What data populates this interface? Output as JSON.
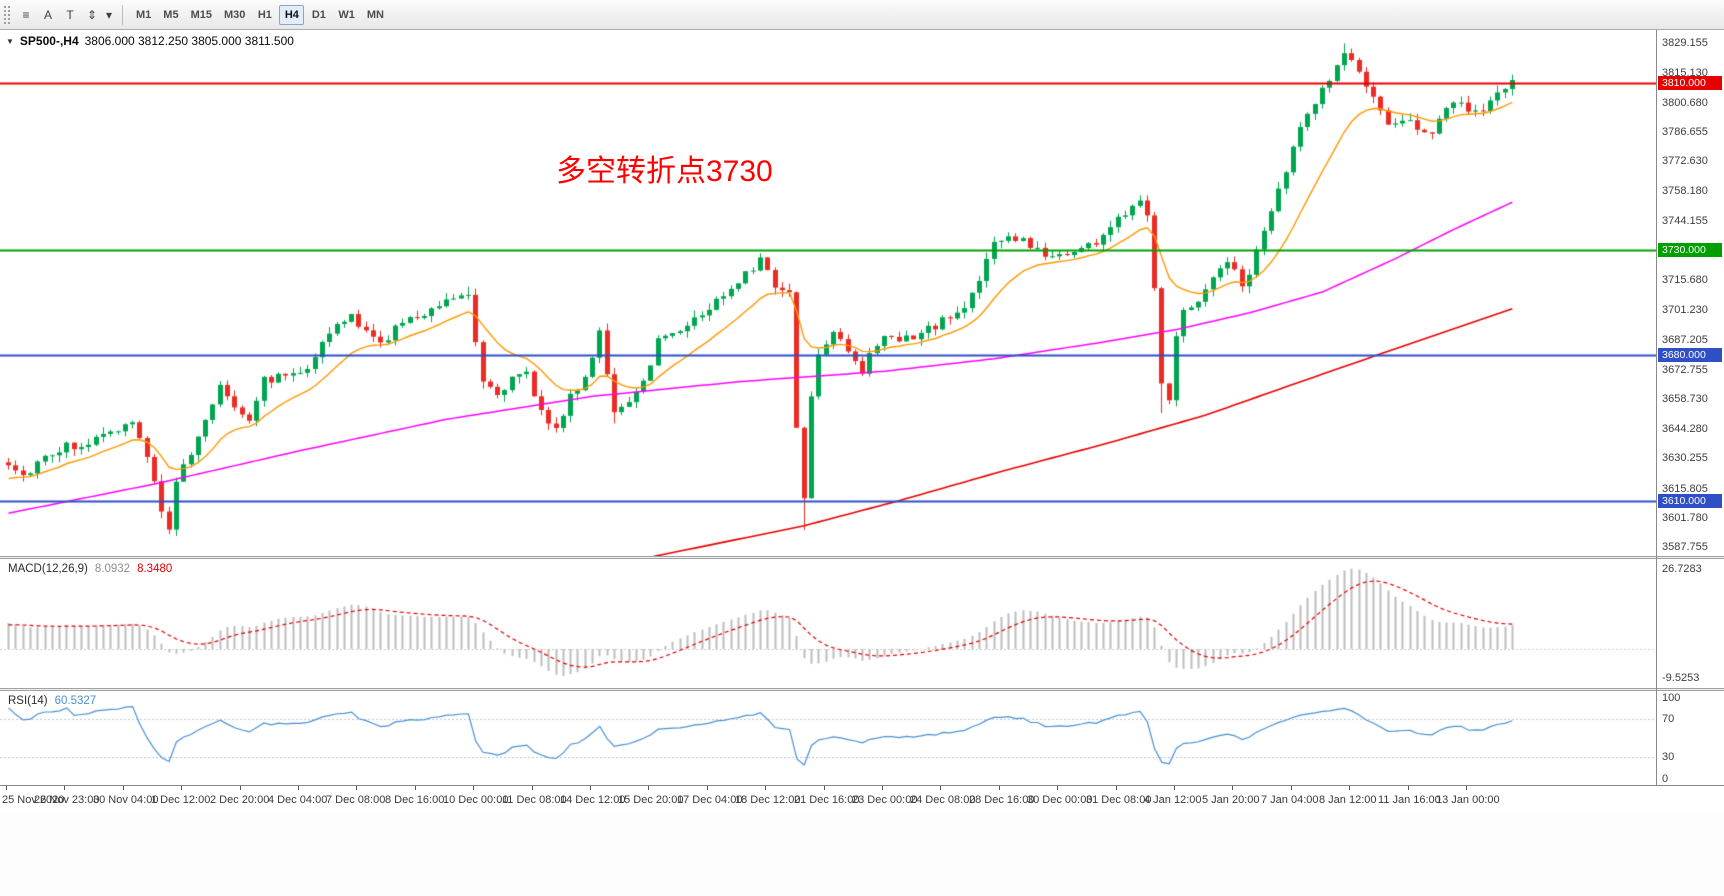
{
  "toolbar": {
    "tools": [
      {
        "name": "toolbox",
        "glyph": "≡"
      },
      {
        "name": "cursor",
        "glyph": "A"
      },
      {
        "name": "text",
        "glyph": "T"
      },
      {
        "name": "crosshair",
        "glyph": "⇕"
      },
      {
        "name": "tools-dropdown",
        "glyph": "▾"
      }
    ],
    "timeframes": [
      {
        "label": "M1",
        "active": false
      },
      {
        "label": "M5",
        "active": false
      },
      {
        "label": "M15",
        "active": false
      },
      {
        "label": "M30",
        "active": false
      },
      {
        "label": "H1",
        "active": false
      },
      {
        "label": "H4",
        "active": true
      },
      {
        "label": "D1",
        "active": false
      },
      {
        "label": "W1",
        "active": false
      },
      {
        "label": "MN",
        "active": false
      }
    ]
  },
  "chart_data": {
    "type": "candlestick",
    "symbol": "SP500-",
    "timeframe": "H4",
    "title_symbol": "SP500-,H4",
    "title_ohlc": "3806.000 3812.250 3805.000 3811.500",
    "one_click_glyph": "▼",
    "annotation": {
      "text": "多空转折点3730",
      "color": "#ff0000"
    },
    "bars": 207,
    "bar_step": 7.3,
    "label_bar_step": 8,
    "scale": {
      "pmax": 3835.5,
      "pmin": 3583.5
    },
    "colors": {
      "up": "#00a550",
      "down": "#ec2c24"
    },
    "series_anchors": [
      [
        0,
        3629
      ],
      [
        2,
        3622
      ],
      [
        5,
        3632
      ],
      [
        8,
        3636
      ],
      [
        11,
        3638
      ],
      [
        14,
        3642
      ],
      [
        17,
        3648
      ],
      [
        19,
        3630
      ],
      [
        21,
        3606
      ],
      [
        22,
        3598
      ],
      [
        23,
        3620
      ],
      [
        25,
        3632
      ],
      [
        27,
        3648
      ],
      [
        29,
        3666
      ],
      [
        31,
        3656
      ],
      [
        33,
        3650
      ],
      [
        35,
        3668
      ],
      [
        38,
        3670
      ],
      [
        41,
        3675
      ],
      [
        44,
        3690
      ],
      [
        47,
        3699
      ],
      [
        49,
        3690
      ],
      [
        51,
        3685
      ],
      [
        53,
        3693
      ],
      [
        56,
        3698
      ],
      [
        58,
        3703
      ],
      [
        61,
        3708
      ],
      [
        63,
        3710
      ],
      [
        64,
        3688
      ],
      [
        65,
        3668
      ],
      [
        67,
        3662
      ],
      [
        69,
        3668
      ],
      [
        71,
        3670
      ],
      [
        73,
        3653
      ],
      [
        75,
        3645
      ],
      [
        77,
        3659
      ],
      [
        79,
        3669
      ],
      [
        81,
        3692
      ],
      [
        82,
        3672
      ],
      [
        83,
        3652
      ],
      [
        85,
        3655
      ],
      [
        87,
        3667
      ],
      [
        89,
        3687
      ],
      [
        92,
        3693
      ],
      [
        95,
        3699
      ],
      [
        98,
        3709
      ],
      [
        101,
        3720
      ],
      [
        103,
        3725
      ],
      [
        105,
        3713
      ],
      [
        107,
        3710
      ],
      [
        108,
        3645
      ],
      [
        109,
        3612
      ],
      [
        110,
        3662
      ],
      [
        111,
        3680
      ],
      [
        113,
        3693
      ],
      [
        115,
        3683
      ],
      [
        117,
        3672
      ],
      [
        119,
        3685
      ],
      [
        121,
        3689
      ],
      [
        124,
        3687
      ],
      [
        126,
        3692
      ],
      [
        129,
        3698
      ],
      [
        131,
        3702
      ],
      [
        133,
        3717
      ],
      [
        135,
        3733
      ],
      [
        137,
        3736
      ],
      [
        139,
        3734
      ],
      [
        141,
        3730
      ],
      [
        143,
        3727
      ],
      [
        145,
        3729
      ],
      [
        147,
        3731
      ],
      [
        149,
        3734
      ],
      [
        151,
        3741
      ],
      [
        153,
        3748
      ],
      [
        155,
        3756
      ],
      [
        156,
        3748
      ],
      [
        157,
        3712
      ],
      [
        158,
        3668
      ],
      [
        159,
        3660
      ],
      [
        160,
        3690
      ],
      [
        161,
        3700
      ],
      [
        163,
        3707
      ],
      [
        165,
        3716
      ],
      [
        167,
        3726
      ],
      [
        169,
        3712
      ],
      [
        171,
        3729
      ],
      [
        173,
        3748
      ],
      [
        175,
        3768
      ],
      [
        177,
        3788
      ],
      [
        179,
        3802
      ],
      [
        181,
        3812
      ],
      [
        183,
        3824
      ],
      [
        184,
        3820
      ],
      [
        185,
        3816
      ],
      [
        187,
        3802
      ],
      [
        189,
        3788
      ],
      [
        191,
        3794
      ],
      [
        193,
        3790
      ],
      [
        195,
        3786
      ],
      [
        197,
        3797
      ],
      [
        199,
        3800
      ],
      [
        201,
        3795
      ],
      [
        203,
        3801
      ],
      [
        205,
        3808
      ],
      [
        206,
        3811.5
      ]
    ],
    "wick_overrides": [
      {
        "i": 22,
        "low": 3594
      },
      {
        "i": 63,
        "high": 3712.5
      },
      {
        "i": 83,
        "low": 3647
      },
      {
        "i": 109,
        "low": 3596
      },
      {
        "i": 158,
        "low": 3652
      },
      {
        "i": 183,
        "high": 3829.1
      }
    ],
    "moving_averages": {
      "fast_period": 13,
      "fast_color": "#ff9800",
      "mid_color": "#ff00ff",
      "mid_anchors": [
        [
          0,
          3604
        ],
        [
          20,
          3618
        ],
        [
          40,
          3634
        ],
        [
          60,
          3649
        ],
        [
          80,
          3660
        ],
        [
          100,
          3667
        ],
        [
          120,
          3672
        ],
        [
          135,
          3678
        ],
        [
          150,
          3686
        ],
        [
          160,
          3692
        ],
        [
          170,
          3700
        ],
        [
          180,
          3710
        ],
        [
          190,
          3726
        ],
        [
          198,
          3740
        ],
        [
          206,
          3753
        ]
      ],
      "slow_color": "#e60000",
      "slow_anchors": [
        [
          60,
          3556
        ],
        [
          88,
          3583
        ],
        [
          109,
          3598
        ],
        [
          122,
          3610
        ],
        [
          136,
          3624
        ],
        [
          150,
          3637
        ],
        [
          164,
          3651
        ],
        [
          177,
          3667
        ],
        [
          191,
          3684
        ],
        [
          206,
          3702
        ]
      ]
    },
    "horizontal_lines": [
      {
        "price": 3810,
        "color": "#e60000",
        "width": 2
      },
      {
        "price": 3730,
        "color": "#00a000",
        "width": 2
      },
      {
        "price": 3680,
        "color": "#2f4fc6",
        "width": 2
      },
      {
        "price": 3610,
        "color": "#2f4fc6",
        "width": 2
      }
    ],
    "price_axis_ticks": [
      "3829.155",
      "3815.130",
      "3800.680",
      "3786.655",
      "3772.630",
      "3758.180",
      "3744.155",
      "3715.680",
      "3701.230",
      "3687.205",
      "3672.755",
      "3658.730",
      "3644.280",
      "3630.255",
      "3615.805",
      "3601.780",
      "3587.755"
    ],
    "price_tags": [
      {
        "text": "3810.000",
        "price": 3810,
        "color": "#e60000"
      },
      {
        "text": "3730.000",
        "price": 3730,
        "color": "#00a000"
      },
      {
        "text": "3680.000",
        "price": 3680,
        "color": "#2f4fc6"
      },
      {
        "text": "3610.000",
        "price": 3610,
        "color": "#2f4fc6"
      }
    ],
    "time_axis_ticks": [
      "25 Nov 2020",
      "26 Nov 23:00",
      "30 Nov 04:00",
      "1 Dec 12:00",
      "2 Dec 20:00",
      "4 Dec 04:00",
      "7 Dec 08:00",
      "8 Dec 16:00",
      "10 Dec 00:00",
      "11 Dec 08:00",
      "14 Dec 12:00",
      "15 Dec 20:00",
      "17 Dec 04:00",
      "18 Dec 12:00",
      "21 Dec 16:00",
      "23 Dec 00:00",
      "24 Dec 08:00",
      "28 Dec 16:00",
      "30 Dec 00:00",
      "31 Dec 08:00",
      "4 Jan 12:00",
      "5 Jan 20:00",
      "7 Jan 04:00",
      "8 Jan 12:00",
      "11 Jan 16:00",
      "13 Jan 00:00"
    ],
    "indicators": {
      "macd": {
        "label": "MACD(12,26,9)",
        "value_main": "8.0932",
        "value_signal": "8.3480",
        "fast": 12,
        "slow": 26,
        "signal_period": 9,
        "vmax": 30,
        "vmin": -13,
        "histogram_color": "#bdbdbd",
        "signal_color": "#e60000",
        "axis": [
          {
            "text": "26.7283",
            "v": 26.7283
          },
          {
            "text": "-9.5253",
            "v": -9.5253
          }
        ]
      },
      "rsi": {
        "label": "RSI(14)",
        "value": "60.5327",
        "period": 14,
        "color": "#4a90d2",
        "levels": [
          70,
          30
        ],
        "axis": [
          {
            "text": "100",
            "v": 100
          },
          {
            "text": "70",
            "v": 70
          },
          {
            "text": "30",
            "v": 30
          },
          {
            "text": "0",
            "v": 0
          }
        ]
      }
    }
  }
}
